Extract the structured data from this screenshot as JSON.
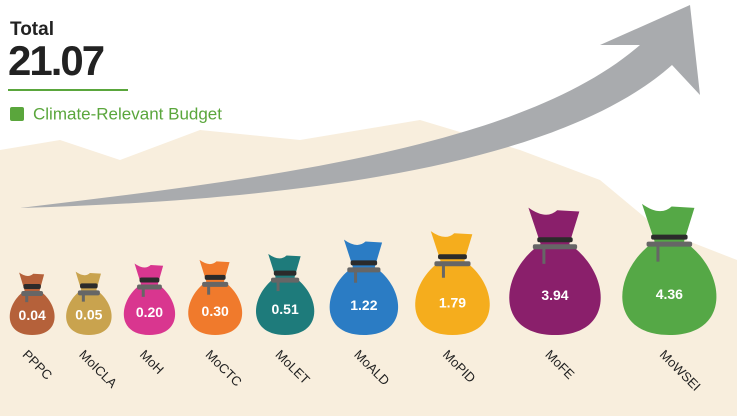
{
  "chart_data": {
    "type": "bag",
    "title": "Total",
    "total": 21.07,
    "legend": "Climate-Relevant Budget",
    "legend_color": "#5aa63c",
    "categories": [
      "PPPC",
      "MoICLA",
      "MoH",
      "MoCTC",
      "MoLET",
      "MoALD",
      "MoPID",
      "MoFE",
      "MoWSEI"
    ],
    "values": [
      0.04,
      0.05,
      0.2,
      0.3,
      0.51,
      1.22,
      1.79,
      3.94,
      4.36
    ],
    "value_labels": [
      "0.04",
      "0.05",
      "0.20",
      "0.30",
      "0.51",
      "1.22",
      "1.79",
      "3.94",
      "4.36"
    ],
    "colors": [
      "#b5613a",
      "#c9a34e",
      "#d9368f",
      "#f07a2c",
      "#1e7b7b",
      "#2b7cc4",
      "#f5ad1d",
      "#8a1f6b",
      "#55a846"
    ]
  }
}
